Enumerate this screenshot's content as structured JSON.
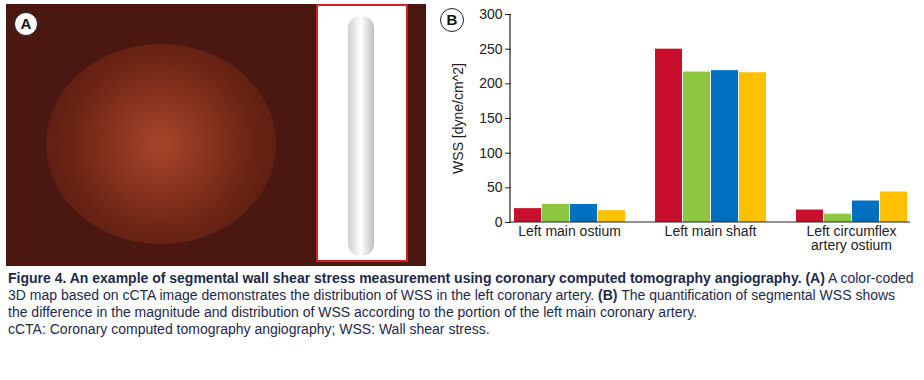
{
  "chart_data": {
    "type": "bar",
    "categories": [
      "Left main ostium",
      "Left main shaft",
      "Left circumflex\nartery ostium"
    ],
    "series": [
      {
        "color": "#c8102e",
        "values": [
          20,
          250,
          18
        ]
      },
      {
        "color": "#8dc63f",
        "values": [
          26,
          217,
          12
        ]
      },
      {
        "color": "#0070c0",
        "values": [
          26,
          219,
          31
        ]
      },
      {
        "color": "#ffc000",
        "values": [
          17,
          216,
          44
        ]
      }
    ],
    "y_label": "WSS [dyne/cm^2]",
    "ylim": [
      0,
      300
    ],
    "yticks": [
      0,
      50,
      100,
      150,
      200,
      250,
      300
    ],
    "grid": false
  },
  "figure": {
    "panels": [
      "A",
      "B"
    ],
    "caption_title": "Figure 4. An example of segmental wall shear stress measurement using coronary computed tomography angiography.",
    "caption_parts": [
      {
        "label": "(A)",
        "text": "A color-coded 3D map based on cCTA image demonstrates the distribution of WSS in the left coronary artery."
      },
      {
        "label": "(B)",
        "text": "The quantification of segmental WSS shows the difference in the magnitude and distribution of WSS according to the portion of the left main coronary artery."
      }
    ],
    "abbreviations": "cCTA: Coronary computed tomography angiography; WSS: Wall shear stress."
  }
}
